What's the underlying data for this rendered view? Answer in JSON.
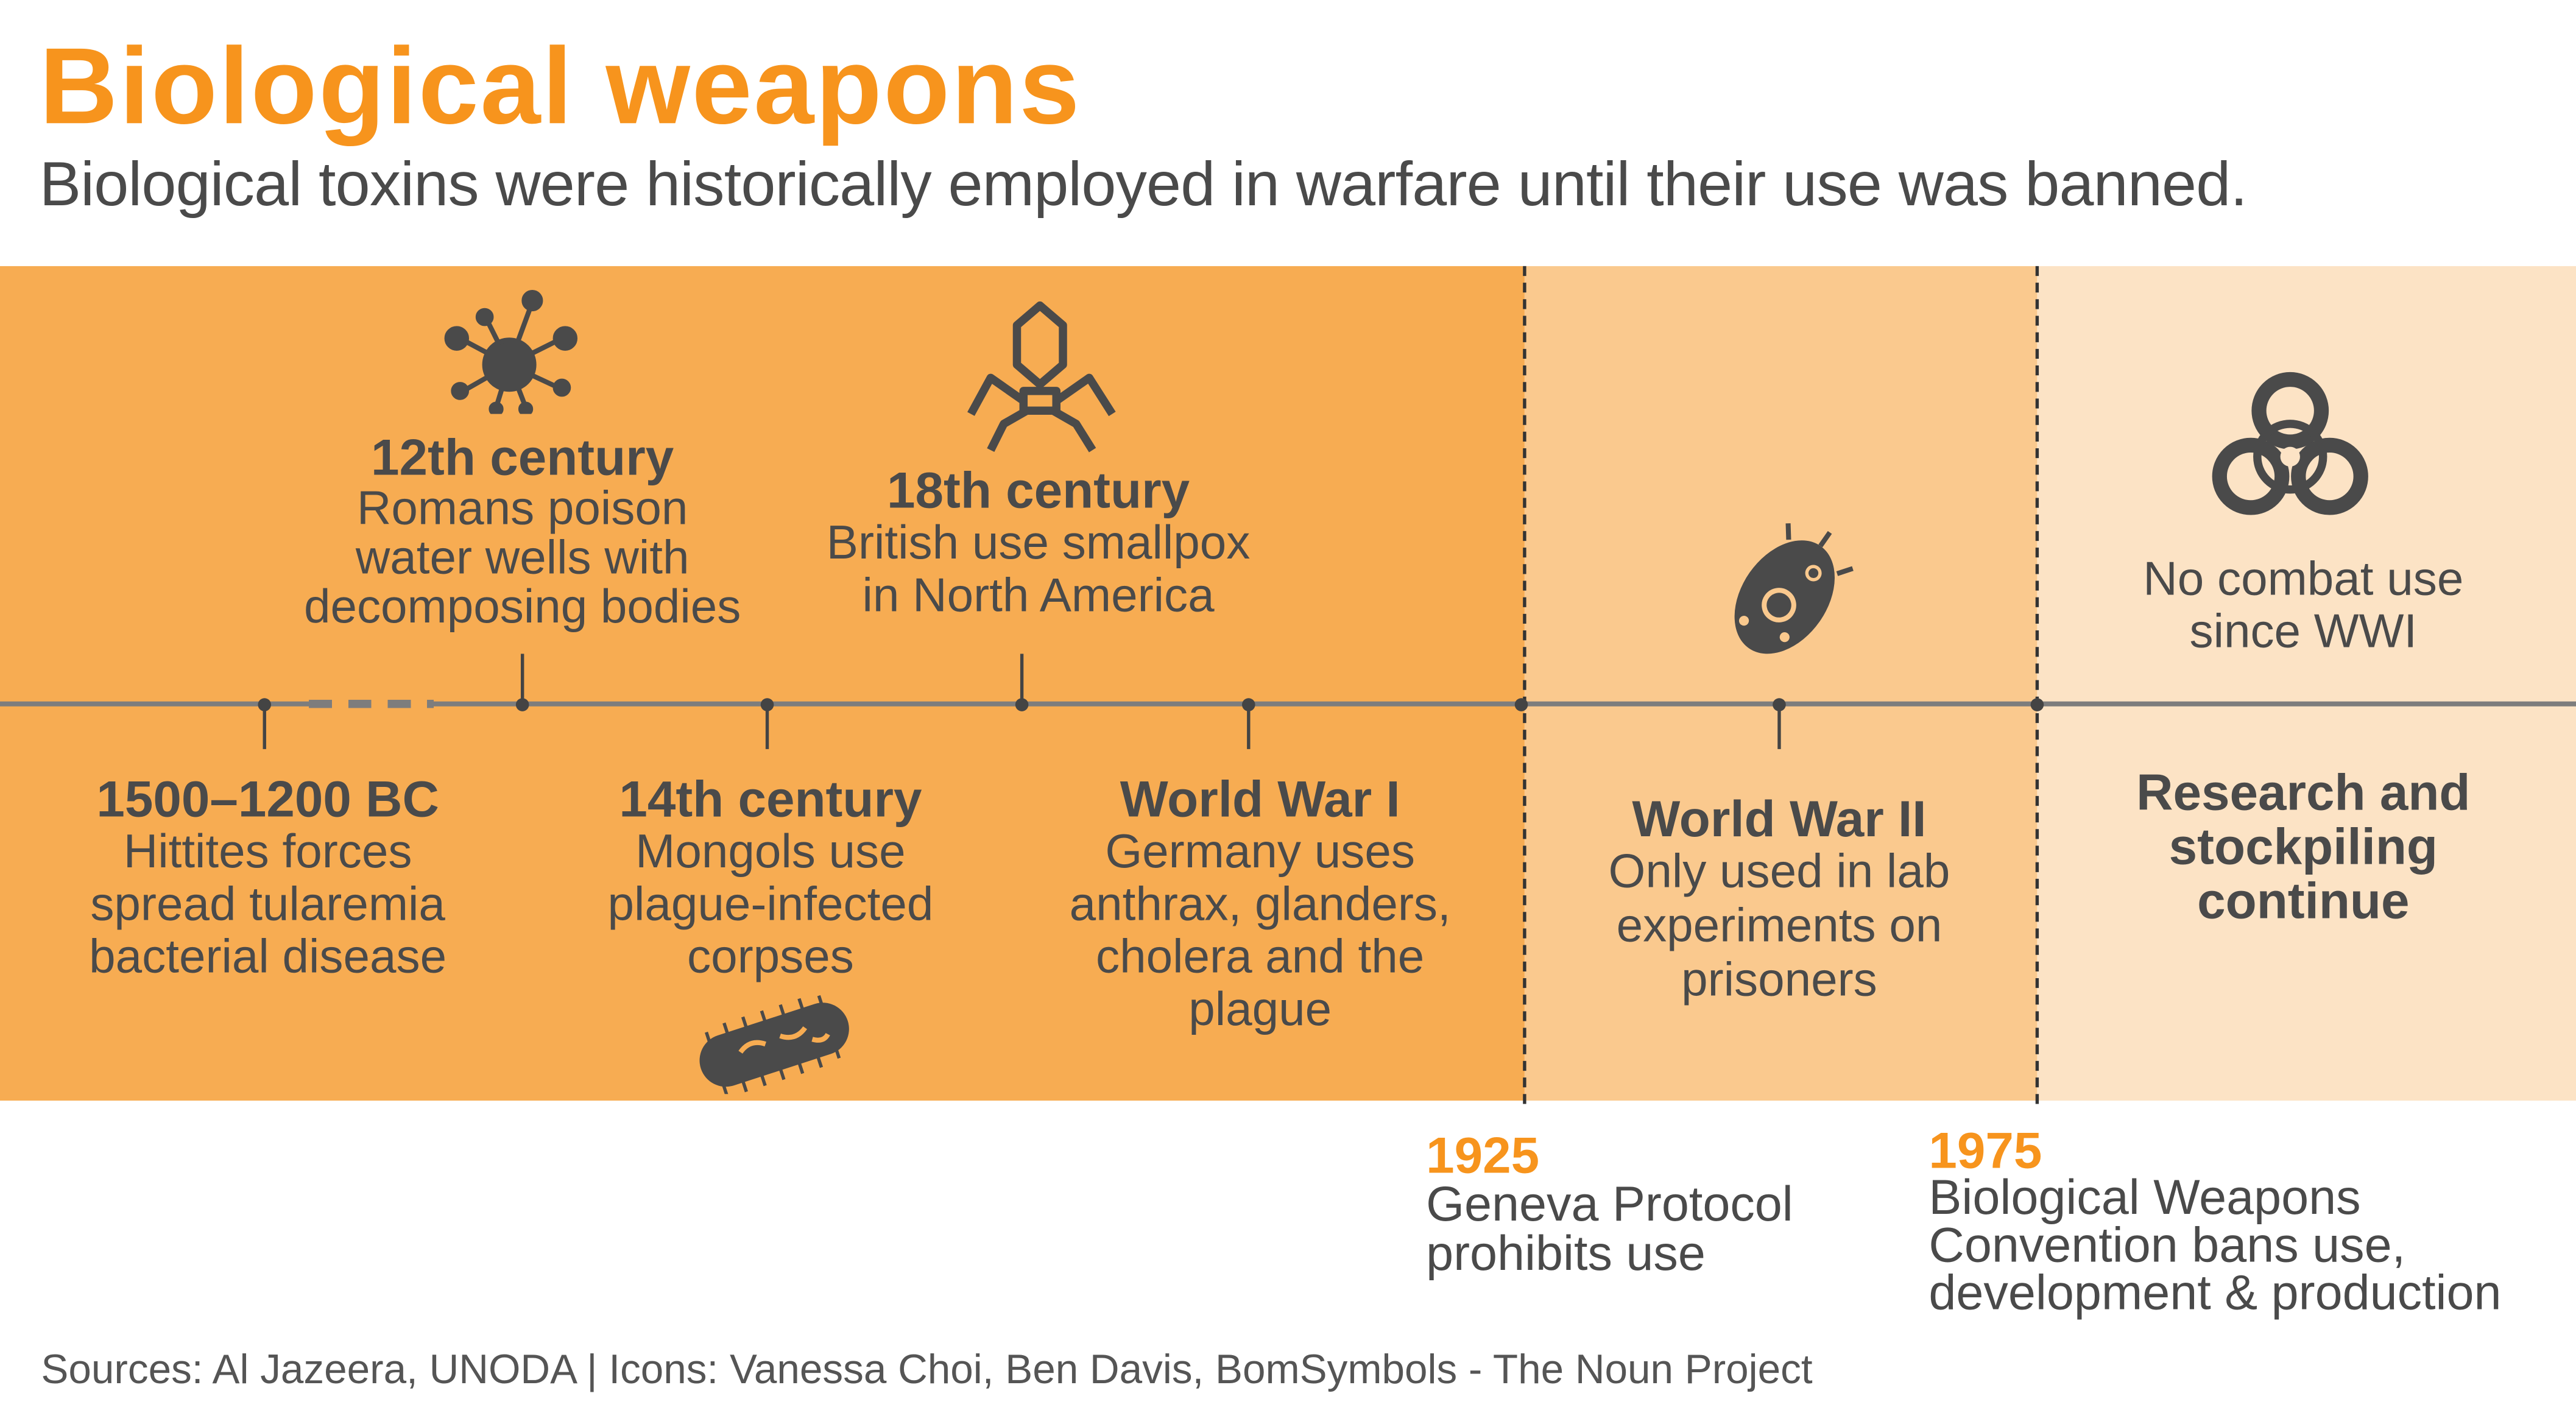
{
  "title": "Biological weapons",
  "subtitle": "Biological toxins were historically employed in warfare until their use was banned.",
  "colors": {
    "accent": "#F7941D",
    "band_before_1925": "#F7AC52",
    "band_1925_1975": "#FAC98E",
    "band_after_1975": "#FCE3C5",
    "text": "#4a4a4a"
  },
  "events": [
    {
      "heading": "1500–1200 BC",
      "lines": [
        "Hittites forces",
        "spread tularemia",
        "bacterial disease"
      ]
    },
    {
      "heading": "12th century",
      "lines": [
        "Romans poison",
        "water wells with",
        "decomposing bodies"
      ],
      "icon": "virus-icon"
    },
    {
      "heading": "14th century",
      "lines": [
        "Mongols use",
        "plague-infected",
        "corpses"
      ],
      "icon": "bacillus-icon"
    },
    {
      "heading": "18th century",
      "lines": [
        "British use smallpox",
        "in North America"
      ],
      "icon": "bacteriophage-icon"
    },
    {
      "heading": "World War I",
      "lines": [
        "Germany uses",
        "anthrax, glanders,",
        "cholera and the",
        "plague"
      ]
    },
    {
      "heading": "World War II",
      "lines": [
        "Only used in lab",
        "experiments on",
        "prisoners"
      ],
      "icon": "bacterium-icon"
    }
  ],
  "after1975": {
    "top": [
      "No combat use",
      "since WWI"
    ],
    "bottom": [
      "Research and",
      "stockpiling",
      "continue"
    ],
    "icon": "biohazard-icon"
  },
  "milestones": [
    {
      "year": "1925",
      "lines": [
        "Geneva Protocol",
        "prohibits use"
      ]
    },
    {
      "year": "1975",
      "lines": [
        "Biological Weapons",
        "Convention bans use,",
        "development & production"
      ]
    }
  ],
  "sources": "Sources: Al Jazeera, UNODA | Icons: Vanessa Choi, Ben Davis, BomSymbols - The Noun Project"
}
